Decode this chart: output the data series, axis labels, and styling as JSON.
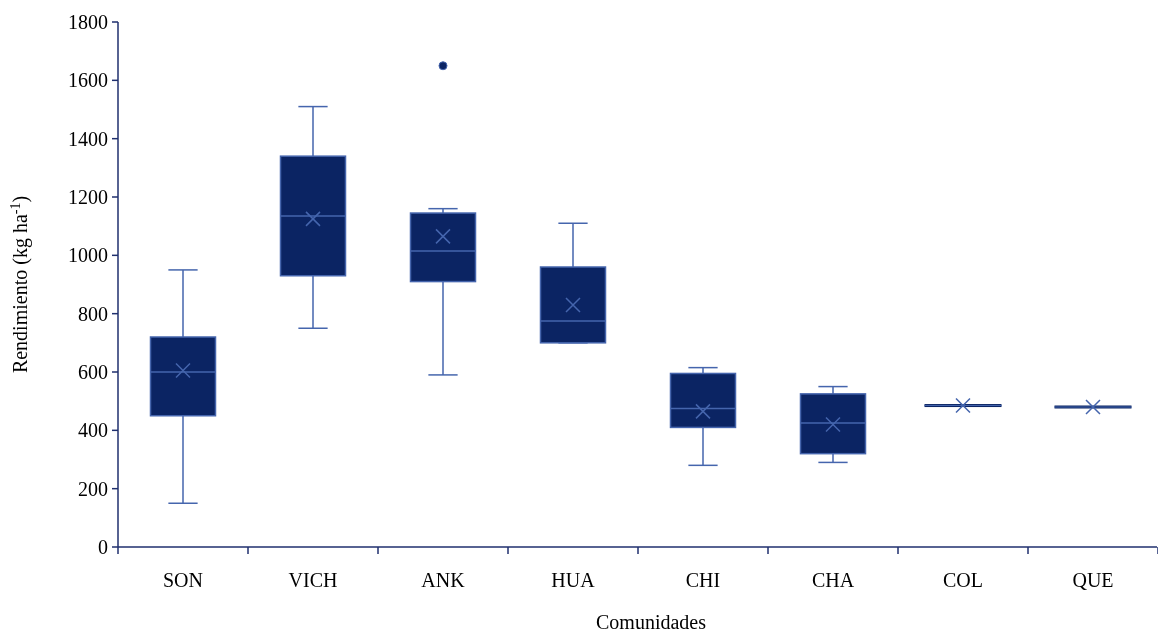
{
  "chart_data": {
    "type": "box",
    "xlabel": "Comunidades",
    "ylabel": "Rendimiento (kg ha$^{-1}$)",
    "categories": [
      "SON",
      "VICH",
      "ANK",
      "HUA",
      "CHI",
      "CHA",
      "COL",
      "QUE"
    ],
    "ylim": [
      0,
      1800
    ],
    "yticks": [
      0,
      200,
      400,
      600,
      800,
      1000,
      1200,
      1400,
      1600,
      1800
    ],
    "grid": false,
    "series": [
      {
        "color": "#0b2463",
        "boxes": [
          {
            "low": 150,
            "q1": 450,
            "median": 600,
            "q3": 720,
            "high": 950,
            "mean": 605
          },
          {
            "low": 750,
            "q1": 930,
            "median": 1135,
            "q3": 1340,
            "high": 1510,
            "mean": 1125
          },
          {
            "low": 590,
            "q1": 910,
            "median": 1015,
            "q3": 1145,
            "high": 1160,
            "mean": 1065,
            "outliers": [
              1650
            ]
          },
          {
            "low": 700,
            "q1": 700,
            "median": 775,
            "q3": 960,
            "high": 1110,
            "mean": 830
          },
          {
            "low": 280,
            "q1": 410,
            "median": 475,
            "q3": 595,
            "high": 615,
            "mean": 465
          },
          {
            "low": 290,
            "q1": 320,
            "median": 425,
            "q3": 525,
            "high": 550,
            "mean": 420
          },
          {
            "low": 485,
            "q1": 485,
            "median": 485,
            "q3": 485,
            "high": 485,
            "mean": 485
          },
          {
            "low": 480,
            "q1": 480,
            "median": 480,
            "q3": 480,
            "high": 480,
            "mean": 480
          }
        ]
      }
    ]
  }
}
